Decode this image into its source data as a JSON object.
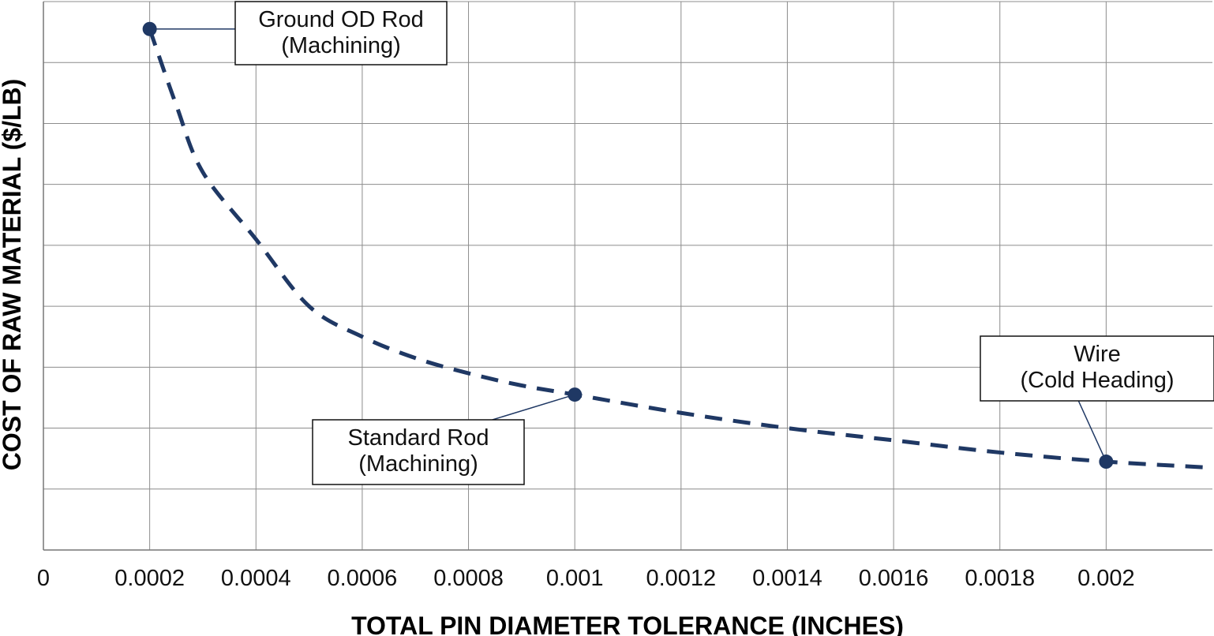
{
  "chart_data": {
    "type": "line",
    "xlabel": "TOTAL PIN DIAMETER TOLERANCE (INCHES)",
    "ylabel": "COST OF RAW MATERIAL ($/LB)",
    "xlim": [
      0,
      0.0022
    ],
    "x_ticks": [
      {
        "value": 0,
        "label": "0"
      },
      {
        "value": 0.0002,
        "label": "0.0002"
      },
      {
        "value": 0.0004,
        "label": "0.0004"
      },
      {
        "value": 0.0006,
        "label": "0.0006"
      },
      {
        "value": 0.0008,
        "label": "0.0008"
      },
      {
        "value": 0.001,
        "label": "0.001"
      },
      {
        "value": 0.0012,
        "label": "0.0012"
      },
      {
        "value": 0.0014,
        "label": "0.0014"
      },
      {
        "value": 0.0016,
        "label": "0.0016"
      },
      {
        "value": 0.0018,
        "label": "0.0018"
      },
      {
        "value": 0.002,
        "label": "0.002"
      }
    ],
    "ylim": [
      0,
      9
    ],
    "y_gridlines": 9,
    "y_tick_labels": false,
    "grid": true,
    "line_style": "dashed",
    "color": "#1f3864",
    "series": [
      {
        "x": [
          0.0002,
          0.00025,
          0.0003,
          0.0004,
          0.0005,
          0.0006,
          0.0007,
          0.0008,
          0.0009,
          0.001,
          0.0012,
          0.0014,
          0.0016,
          0.0018,
          0.002,
          0.0022
        ],
        "y": [
          8.55,
          7.3,
          6.2,
          5.1,
          4.0,
          3.5,
          3.15,
          2.9,
          2.7,
          2.55,
          2.25,
          2.0,
          1.8,
          1.6,
          1.45,
          1.35
        ]
      }
    ],
    "callouts": [
      {
        "point": {
          "x": 0.0002,
          "y": 8.55
        },
        "lines": [
          "Ground OD Rod",
          "(Machining)"
        ]
      },
      {
        "point": {
          "x": 0.001,
          "y": 2.55
        },
        "lines": [
          "Standard Rod",
          "(Machining)"
        ]
      },
      {
        "point": {
          "x": 0.002,
          "y": 1.45
        },
        "lines": [
          "Wire",
          "(Cold Heading)"
        ]
      }
    ]
  }
}
